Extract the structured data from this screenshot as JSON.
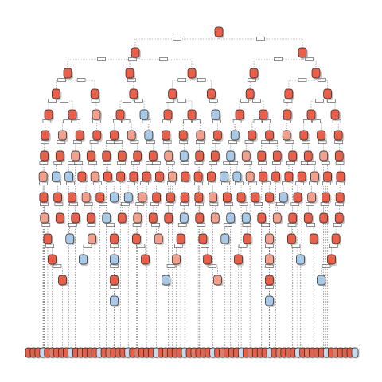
{
  "diagram": {
    "kind": "decision-tree",
    "colors": {
      "class_a": "#e8604a",
      "class_a_light": "#f2a08e",
      "class_b": "#a9c9e6",
      "edge": "#555555",
      "outline": "#222222",
      "shadow": "#9a9a9a"
    },
    "leaf_row_colors": [
      "#e8604a",
      "#d86652",
      "#e8604a",
      "#c9d9ea",
      "#e8604a",
      "#e07b66"
    ],
    "levels": [
      {
        "count": 1,
        "light": [],
        "blue": []
      },
      {
        "count": 2,
        "light": [],
        "blue": []
      },
      {
        "count": 5,
        "light": [],
        "blue": []
      },
      {
        "count": 8,
        "light": [],
        "blue": []
      },
      {
        "count": 13,
        "light": [
          2
        ],
        "blue": [
          4,
          7
        ]
      },
      {
        "count": 18,
        "light": [
          1,
          5,
          9,
          14
        ],
        "blue": [
          6,
          11
        ]
      },
      {
        "count": 20,
        "light": [
          2,
          8,
          13,
          18
        ],
        "blue": [
          9,
          12
        ]
      },
      {
        "count": 24,
        "light": [
          0,
          4,
          10,
          16,
          21
        ],
        "blue": [
          1,
          2,
          14,
          15
        ]
      },
      {
        "count": 22,
        "light": [
          3,
          7,
          12,
          19
        ],
        "blue": [
          5,
          6,
          17
        ]
      },
      {
        "count": 20,
        "light": [
          0,
          6,
          11,
          15
        ],
        "blue": [
          4,
          9,
          12,
          13
        ]
      },
      {
        "count": 14,
        "light": [
          2,
          5,
          10
        ],
        "blue": [
          1,
          8
        ]
      },
      {
        "count": 10,
        "light": [
          4,
          7
        ],
        "blue": [
          1,
          2,
          8
        ]
      },
      {
        "count": 6,
        "light": [
          3
        ],
        "blue": [
          2,
          5
        ]
      },
      {
        "count": 2,
        "light": [],
        "blue": [
          0,
          1
        ]
      }
    ],
    "leaf_count": 70
  }
}
